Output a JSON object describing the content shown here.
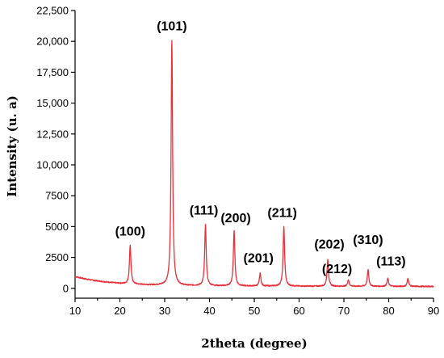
{
  "chart_data": {
    "type": "line",
    "xlabel": "2theta (degree)",
    "ylabel": "Intensity (u. a)",
    "xlim": [
      10,
      90
    ],
    "ylim": [
      -800,
      22500
    ],
    "x_ticks": [
      10,
      20,
      30,
      40,
      50,
      60,
      70,
      80,
      90
    ],
    "x_tick_labels": [
      "10",
      "20",
      "30",
      "40",
      "50",
      "60",
      "70",
      "80",
      "90"
    ],
    "y_ticks": [
      0,
      2500,
      5000,
      7500,
      10000,
      12500,
      15000,
      17500,
      20000,
      22500
    ],
    "y_tick_labels": [
      "0",
      "2500",
      "5000",
      "7500",
      "10,000",
      "12,500",
      "15,000",
      "17,500",
      "20,000",
      "22,500"
    ],
    "grid": false,
    "legend": "none",
    "series_color": "#e8303a",
    "baseline": {
      "x": [
        10,
        12,
        14,
        16,
        18,
        20,
        22,
        25,
        28,
        30,
        35,
        40,
        45,
        50,
        55,
        60,
        65,
        70,
        75,
        80,
        85,
        90
      ],
      "y": [
        950,
        780,
        650,
        550,
        470,
        400,
        350,
        300,
        260,
        240,
        210,
        200,
        190,
        180,
        175,
        170,
        165,
        160,
        160,
        155,
        150,
        150
      ]
    },
    "peaks": [
      {
        "label": "(100)",
        "x": 22.3,
        "y": 3500
      },
      {
        "label": "(101)",
        "x": 31.6,
        "y": 20100
      },
      {
        "label": "(111)",
        "x": 39.1,
        "y": 5200
      },
      {
        "label": "(200)",
        "x": 45.5,
        "y": 4700
      },
      {
        "label": "(201)",
        "x": 51.3,
        "y": 1200
      },
      {
        "label": "(211)",
        "x": 56.6,
        "y": 5000
      },
      {
        "label": "(202)",
        "x": 66.4,
        "y": 2300
      },
      {
        "label": "(212)",
        "x": 71.0,
        "y": 700
      },
      {
        "label": "(310)",
        "x": 75.4,
        "y": 1500
      },
      {
        "label": "(113)",
        "x": 79.8,
        "y": 800
      },
      {
        "label": "",
        "x": 84.3,
        "y": 800
      }
    ]
  }
}
